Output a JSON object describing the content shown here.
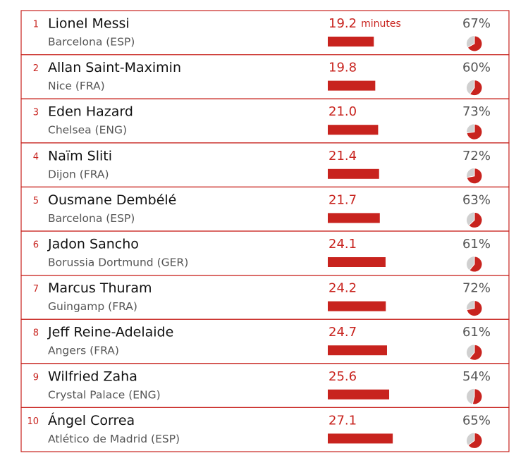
{
  "table": {
    "minutes_unit": "minutes",
    "rows": [
      {
        "rank": 1,
        "name": "Lionel Messi",
        "club": "Barcelona (ESP)",
        "minutes": 19.2,
        "pct": {
          "value": 67,
          "label": "67%"
        }
      },
      {
        "rank": 2,
        "name": "Allan Saint-Maximin",
        "club": "Nice (FRA)",
        "minutes": 19.8,
        "pct": {
          "value": 60,
          "label": "60%"
        }
      },
      {
        "rank": 3,
        "name": "Eden Hazard",
        "club": "Chelsea (ENG)",
        "minutes": {
          "value": 21,
          "label": "21.0"
        },
        "pct": {
          "value": 73,
          "label": "73%"
        }
      },
      {
        "rank": 4,
        "name": "Naïm Sliti",
        "club": "Dijon (FRA)",
        "minutes": 21.4,
        "pct": {
          "value": 72,
          "label": "72%"
        }
      },
      {
        "rank": 5,
        "name": "Ousmane Dembélé",
        "club": "Barcelona (ESP)",
        "minutes": 21.7,
        "pct": {
          "value": 63,
          "label": "63%"
        }
      },
      {
        "rank": 6,
        "name": "Jadon Sancho",
        "club": "Borussia Dortmund (GER)",
        "minutes": 24.1,
        "pct": {
          "value": 61,
          "label": "61%"
        }
      },
      {
        "rank": 7,
        "name": "Marcus Thuram",
        "club": "Guingamp (FRA)",
        "minutes": 24.2,
        "pct": {
          "value": 72,
          "label": "72%"
        }
      },
      {
        "rank": 8,
        "name": "Jeff Reine-Adelaide",
        "club": "Angers (FRA)",
        "minutes": 24.7,
        "pct": {
          "value": 61,
          "label": "61%"
        }
      },
      {
        "rank": 9,
        "name": "Wilfried Zaha",
        "club": "Crystal Palace (ENG)",
        "minutes": 25.6,
        "pct": {
          "value": 54,
          "label": "54%"
        }
      },
      {
        "rank": 10,
        "name": "Ángel Correa",
        "club": "Atlético de Madrid (ESP)",
        "minutes": 27.1,
        "pct": {
          "value": 65,
          "label": "65%"
        }
      }
    ]
  }
}
